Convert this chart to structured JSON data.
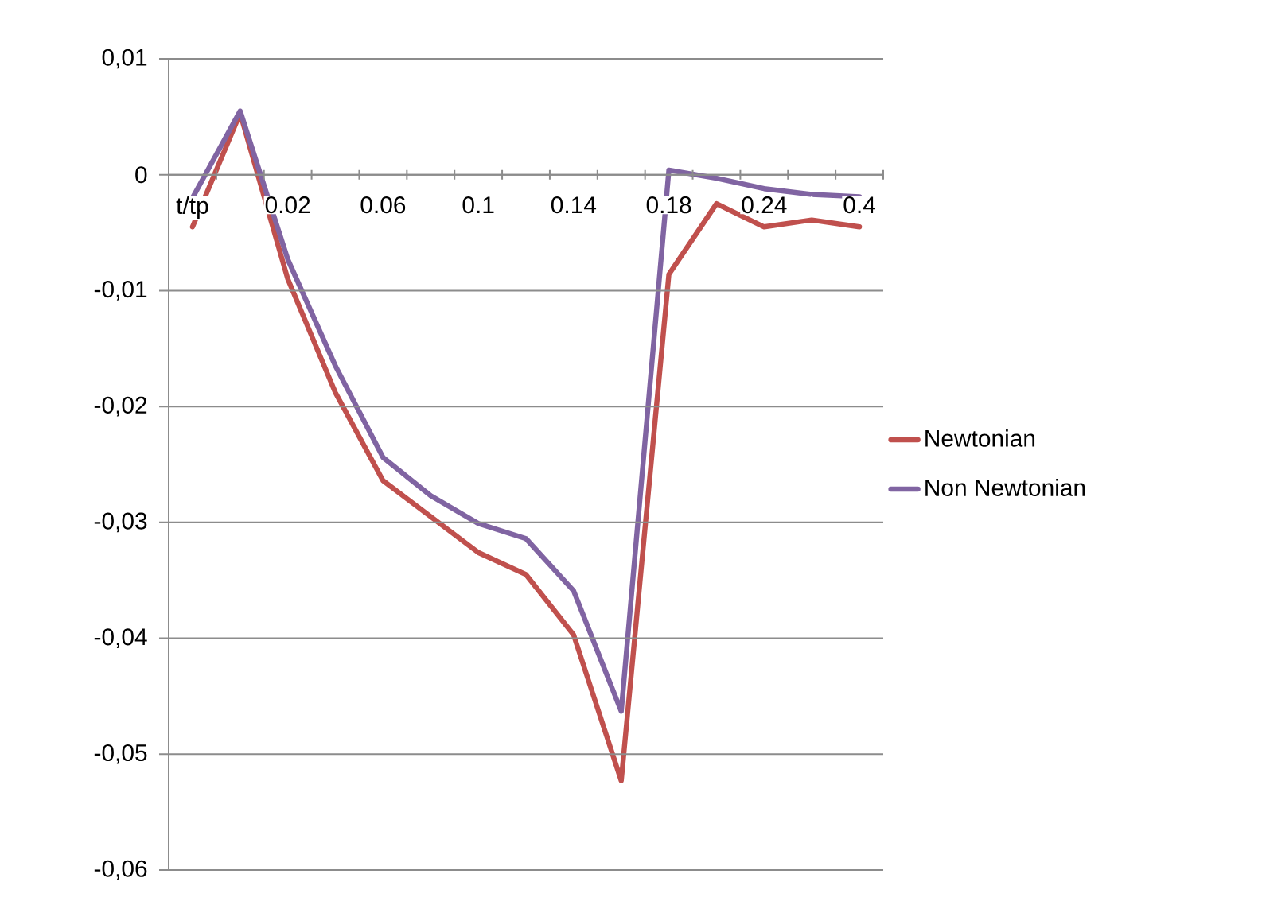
{
  "chart_data": {
    "type": "line",
    "categories": [
      "t/tp",
      null,
      "0.02",
      null,
      "0.06",
      null,
      "0.1",
      null,
      "0.14",
      null,
      "0.18",
      null,
      "0.24",
      null,
      "0.4"
    ],
    "series": [
      {
        "name": "Newtonian",
        "color": "#c0504d",
        "values": [
          -0.0045,
          0.0053,
          -0.009,
          -0.0188,
          -0.0264,
          -0.0295,
          -0.0326,
          -0.0345,
          -0.0397,
          -0.0523,
          -0.0086,
          -0.0025,
          -0.0045,
          -0.0039,
          -0.0045
        ]
      },
      {
        "name": "Non Newtonian",
        "color": "#8064a2",
        "values": [
          -0.002,
          0.0055,
          -0.0073,
          -0.0165,
          -0.0244,
          -0.0277,
          -0.0301,
          -0.0314,
          -0.0359,
          -0.0463,
          0.0004,
          -0.0003,
          -0.0012,
          -0.0017,
          -0.0019
        ]
      }
    ],
    "ylim": [
      -0.06,
      0.01
    ],
    "yticks": [
      {
        "value": -0.06,
        "label": "-0,06"
      },
      {
        "value": -0.05,
        "label": "-0,05"
      },
      {
        "value": -0.04,
        "label": "-0,04"
      },
      {
        "value": -0.03,
        "label": "-0,03"
      },
      {
        "value": -0.02,
        "label": "-0,02"
      },
      {
        "value": -0.01,
        "label": "-0,01"
      },
      0,
      {
        "value": 0.01,
        "label": "0,01"
      }
    ],
    "grid": "y",
    "legend": "right",
    "marker": "none",
    "line_style": "solid"
  }
}
